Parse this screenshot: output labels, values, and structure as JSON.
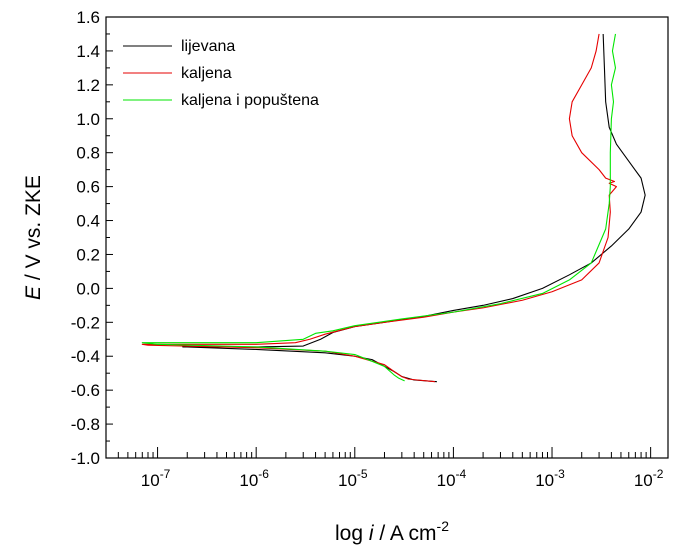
{
  "chart_data": {
    "type": "line",
    "xlabel": {
      "prefix": "log ",
      "variable": "i",
      "suffix": " / A cm",
      "superscript": "-2"
    },
    "ylabel": {
      "variable": "E",
      "suffix": " / V vs. ZKE"
    },
    "x_scale": "log",
    "xlim": [
      3e-08,
      0.015
    ],
    "ylim": [
      -1.0,
      1.6
    ],
    "x_ticks": [
      {
        "value": 1e-07,
        "base": "10",
        "exp": "-7"
      },
      {
        "value": 1e-06,
        "base": "10",
        "exp": "-6"
      },
      {
        "value": 1e-05,
        "base": "10",
        "exp": "-5"
      },
      {
        "value": 0.0001,
        "base": "10",
        "exp": "-4"
      },
      {
        "value": 0.001,
        "base": "10",
        "exp": "-3"
      },
      {
        "value": 0.01,
        "base": "10",
        "exp": "-2"
      }
    ],
    "y_ticks": [
      {
        "value": 1.6,
        "label": "1.6"
      },
      {
        "value": 1.4,
        "label": "1.4"
      },
      {
        "value": 1.2,
        "label": "1.2"
      },
      {
        "value": 1.0,
        "label": "1.0"
      },
      {
        "value": 0.8,
        "label": "0.8"
      },
      {
        "value": 0.6,
        "label": "0.6"
      },
      {
        "value": 0.4,
        "label": "0.4"
      },
      {
        "value": 0.2,
        "label": "0.2"
      },
      {
        "value": 0.0,
        "label": "0.0"
      },
      {
        "value": -0.2,
        "label": "-0.2"
      },
      {
        "value": -0.4,
        "label": "-0.4"
      },
      {
        "value": -0.6,
        "label": "-0.6"
      },
      {
        "value": -0.8,
        "label": "-0.8"
      },
      {
        "value": -1.0,
        "label": "-1.0"
      }
    ],
    "legend_position": "top-left",
    "grid": false,
    "series": [
      {
        "name": "lijevana",
        "color": "#000000",
        "points": [
          [
            6.8e-05,
            -0.55
          ],
          [
            4e-05,
            -0.54
          ],
          [
            3e-05,
            -0.52
          ],
          [
            2.5e-05,
            -0.49
          ],
          [
            2e-05,
            -0.46
          ],
          [
            1.5e-05,
            -0.42
          ],
          [
            1e-05,
            -0.4
          ],
          [
            5e-06,
            -0.38
          ],
          [
            1e-06,
            -0.36
          ],
          [
            2e-07,
            -0.345
          ],
          [
            1.8e-07,
            -0.345
          ],
          [
            1e-06,
            -0.345
          ],
          [
            3e-06,
            -0.34
          ],
          [
            4.5e-06,
            -0.3
          ],
          [
            6e-06,
            -0.26
          ],
          [
            1e-05,
            -0.225
          ],
          [
            2e-05,
            -0.2
          ],
          [
            5e-05,
            -0.165
          ],
          [
            0.0001,
            -0.13
          ],
          [
            0.0002,
            -0.1
          ],
          [
            0.0004,
            -0.06
          ],
          [
            0.0008,
            0.0
          ],
          [
            0.0015,
            0.08
          ],
          [
            0.0025,
            0.15
          ],
          [
            0.004,
            0.25
          ],
          [
            0.006,
            0.35
          ],
          [
            0.008,
            0.45
          ],
          [
            0.0088,
            0.55
          ],
          [
            0.008,
            0.65
          ],
          [
            0.006,
            0.75
          ],
          [
            0.0045,
            0.85
          ],
          [
            0.0038,
            0.95
          ],
          [
            0.0035,
            1.1
          ],
          [
            0.0034,
            1.3
          ],
          [
            0.0033,
            1.5
          ]
        ]
      },
      {
        "name": "kaljena",
        "color": "#e60000",
        "points": [
          [
            6.5e-05,
            -0.55
          ],
          [
            3.5e-05,
            -0.535
          ],
          [
            3e-05,
            -0.52
          ],
          [
            2.5e-05,
            -0.49
          ],
          [
            2e-05,
            -0.45
          ],
          [
            1e-05,
            -0.4
          ],
          [
            5e-06,
            -0.37
          ],
          [
            1e-06,
            -0.35
          ],
          [
            8e-08,
            -0.335
          ],
          [
            7e-08,
            -0.33
          ],
          [
            1e-06,
            -0.33
          ],
          [
            2.5e-06,
            -0.32
          ],
          [
            3.5e-06,
            -0.3
          ],
          [
            5e-06,
            -0.27
          ],
          [
            1e-05,
            -0.225
          ],
          [
            2e-05,
            -0.2
          ],
          [
            5e-05,
            -0.17
          ],
          [
            0.0001,
            -0.14
          ],
          [
            0.0002,
            -0.115
          ],
          [
            0.0005,
            -0.07
          ],
          [
            0.001,
            -0.02
          ],
          [
            0.002,
            0.05
          ],
          [
            0.003,
            0.15
          ],
          [
            0.0037,
            0.3
          ],
          [
            0.0039,
            0.45
          ],
          [
            0.0038,
            0.55
          ],
          [
            0.0045,
            0.6
          ],
          [
            0.0038,
            0.62
          ],
          [
            0.0043,
            0.63
          ],
          [
            0.0035,
            0.65
          ],
          [
            0.003,
            0.7
          ],
          [
            0.002,
            0.8
          ],
          [
            0.0016,
            0.9
          ],
          [
            0.0015,
            1.0
          ],
          [
            0.0016,
            1.1
          ],
          [
            0.002,
            1.2
          ],
          [
            0.0025,
            1.3
          ],
          [
            0.0028,
            1.4
          ],
          [
            0.003,
            1.5
          ]
        ]
      },
      {
        "name": "kaljena i popuštena",
        "color": "#00e600",
        "points": [
          [
            3.2e-05,
            -0.545
          ],
          [
            2.8e-05,
            -0.53
          ],
          [
            2.5e-05,
            -0.51
          ],
          [
            2e-05,
            -0.46
          ],
          [
            1.5e-05,
            -0.43
          ],
          [
            1e-05,
            -0.39
          ],
          [
            5e-06,
            -0.37
          ],
          [
            1e-06,
            -0.345
          ],
          [
            1e-07,
            -0.33
          ],
          [
            7e-08,
            -0.32
          ],
          [
            1e-06,
            -0.32
          ],
          [
            3e-06,
            -0.3
          ],
          [
            4e-06,
            -0.265
          ],
          [
            6e-06,
            -0.25
          ],
          [
            1e-05,
            -0.22
          ],
          [
            3e-05,
            -0.18
          ],
          [
            0.0001,
            -0.14
          ],
          [
            0.0003,
            -0.09
          ],
          [
            0.0008,
            -0.03
          ],
          [
            0.0015,
            0.05
          ],
          [
            0.0025,
            0.15
          ],
          [
            0.0035,
            0.35
          ],
          [
            0.0038,
            0.5
          ],
          [
            0.0039,
            0.6
          ],
          [
            0.0039,
            0.8
          ],
          [
            0.004,
            1.0
          ],
          [
            0.0042,
            1.1
          ],
          [
            0.004,
            1.2
          ],
          [
            0.0044,
            1.3
          ],
          [
            0.0041,
            1.4
          ],
          [
            0.0044,
            1.5
          ]
        ]
      }
    ]
  }
}
